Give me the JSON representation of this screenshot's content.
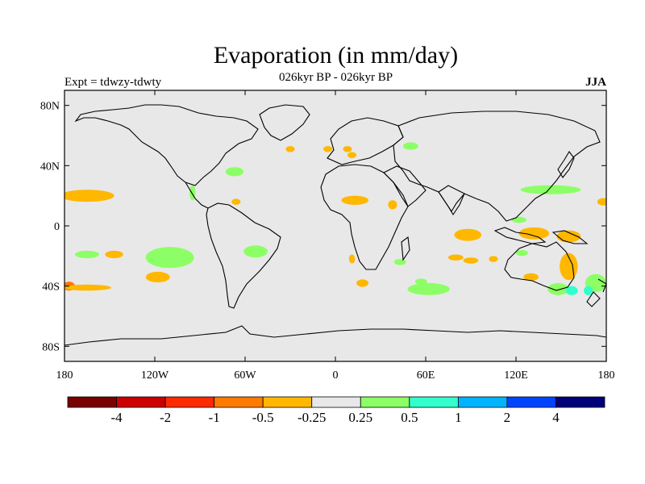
{
  "header": {
    "title": "Evaporation (in mm/day)",
    "subtitle": "026kyr BP - 026kyr BP",
    "left": "Expt = tdwzy-tdwty",
    "right": "JJA"
  },
  "map": {
    "background": "#e8e8e8",
    "lat_ticks": [
      {
        "lat": 80,
        "label": "80N"
      },
      {
        "lat": 40,
        "label": "40N"
      },
      {
        "lat": 0,
        "label": "0"
      },
      {
        "lat": -40,
        "label": "40S"
      },
      {
        "lat": -80,
        "label": "80S"
      }
    ],
    "lon_ticks": [
      {
        "lon": -180,
        "label": "180"
      },
      {
        "lon": -120,
        "label": "120W"
      },
      {
        "lon": -60,
        "label": "60W"
      },
      {
        "lon": 0,
        "label": "0"
      },
      {
        "lon": 60,
        "label": "60E"
      },
      {
        "lon": 120,
        "label": "120E"
      },
      {
        "lon": 180,
        "label": "180"
      }
    ],
    "anomalies": [
      {
        "lon": -165,
        "lat": 20,
        "rlon": 18,
        "rlat": 4,
        "color": "#ffb700"
      },
      {
        "lon": -177,
        "lat": -40,
        "rlon": 4,
        "rlat": 3,
        "color": "#ff7a00"
      },
      {
        "lon": -165,
        "lat": -41,
        "rlon": 16,
        "rlat": 2,
        "color": "#ffb700"
      },
      {
        "lon": -165,
        "lat": -19,
        "rlon": 8,
        "rlat": 2.5,
        "color": "#8cff66"
      },
      {
        "lon": -147,
        "lat": -19,
        "rlon": 6,
        "rlat": 2.5,
        "color": "#ffb700"
      },
      {
        "lon": -110,
        "lat": -21,
        "rlon": 16,
        "rlat": 7,
        "color": "#8cff66"
      },
      {
        "lon": -118,
        "lat": -34,
        "rlon": 8,
        "rlat": 3.5,
        "color": "#ffb700"
      },
      {
        "lon": -66,
        "lat": 16,
        "rlon": 3,
        "rlat": 2,
        "color": "#ffb700"
      },
      {
        "lon": -95,
        "lat": 22,
        "rlon": 2,
        "rlat": 5,
        "color": "#8cff66"
      },
      {
        "lon": -67,
        "lat": 36,
        "rlon": 6,
        "rlat": 3,
        "color": "#8cff66"
      },
      {
        "lon": -53,
        "lat": -17,
        "rlon": 8,
        "rlat": 4,
        "color": "#8cff66"
      },
      {
        "lon": -30,
        "lat": 51,
        "rlon": 3,
        "rlat": 2,
        "color": "#ffb700"
      },
      {
        "lon": -5,
        "lat": 51,
        "rlon": 3,
        "rlat": 2,
        "color": "#ffb700"
      },
      {
        "lon": 8,
        "lat": 51,
        "rlon": 3,
        "rlat": 2,
        "color": "#ffb700"
      },
      {
        "lon": 11,
        "lat": 47,
        "rlon": 3,
        "rlat": 2,
        "color": "#ffb700"
      },
      {
        "lon": 50,
        "lat": 53,
        "rlon": 5,
        "rlat": 2.5,
        "color": "#8cff66"
      },
      {
        "lon": 13,
        "lat": 17,
        "rlon": 9,
        "rlat": 3,
        "color": "#ffb700"
      },
      {
        "lon": 38,
        "lat": 14,
        "rlon": 3,
        "rlat": 3,
        "color": "#ffb700"
      },
      {
        "lon": 11,
        "lat": -22,
        "rlon": 2,
        "rlat": 3,
        "color": "#ffb700"
      },
      {
        "lon": 18,
        "lat": -38,
        "rlon": 4,
        "rlat": 2.5,
        "color": "#ffb700"
      },
      {
        "lon": 43,
        "lat": -24,
        "rlon": 4,
        "rlat": 2,
        "color": "#8cff66"
      },
      {
        "lon": 62,
        "lat": -42,
        "rlon": 14,
        "rlat": 4,
        "color": "#8cff66"
      },
      {
        "lon": 57,
        "lat": -37,
        "rlon": 4,
        "rlat": 2,
        "color": "#8cff66"
      },
      {
        "lon": 88,
        "lat": -6,
        "rlon": 9,
        "rlat": 4,
        "color": "#ffb700"
      },
      {
        "lon": 80,
        "lat": -21,
        "rlon": 5,
        "rlat": 2,
        "color": "#ffb700"
      },
      {
        "lon": 90,
        "lat": -23,
        "rlon": 5,
        "rlat": 2,
        "color": "#ffb700"
      },
      {
        "lon": 105,
        "lat": -22,
        "rlon": 3,
        "rlat": 2,
        "color": "#ffb700"
      },
      {
        "lon": 143,
        "lat": 24,
        "rlon": 20,
        "rlat": 3,
        "color": "#8cff66"
      },
      {
        "lon": 178,
        "lat": 16,
        "rlon": 4,
        "rlat": 2.5,
        "color": "#ffb700"
      },
      {
        "lon": 122,
        "lat": 4,
        "rlon": 5,
        "rlat": 2,
        "color": "#8cff66"
      },
      {
        "lon": 132,
        "lat": -5,
        "rlon": 10,
        "rlat": 4,
        "color": "#ffb700"
      },
      {
        "lon": 155,
        "lat": -7,
        "rlon": 8,
        "rlat": 4,
        "color": "#ffb700"
      },
      {
        "lon": 124,
        "lat": -18,
        "rlon": 4,
        "rlat": 2,
        "color": "#8cff66"
      },
      {
        "lon": 155,
        "lat": -27,
        "rlon": 6,
        "rlat": 9,
        "color": "#ffb700"
      },
      {
        "lon": 130,
        "lat": -34,
        "rlon": 5,
        "rlat": 2.5,
        "color": "#ffb700"
      },
      {
        "lon": 148,
        "lat": -42,
        "rlon": 7,
        "rlat": 4,
        "color": "#8cff66"
      },
      {
        "lon": 157,
        "lat": -43,
        "rlon": 4,
        "rlat": 3,
        "color": "#33ffcc"
      },
      {
        "lon": 173,
        "lat": -38,
        "rlon": 7,
        "rlat": 6,
        "color": "#8cff66"
      },
      {
        "lon": 168,
        "lat": -43,
        "rlon": 3,
        "rlat": 3,
        "color": "#33ffcc"
      }
    ]
  },
  "colorbar": {
    "colors": [
      "#7a0000",
      "#cc0000",
      "#ff2a00",
      "#ff7a00",
      "#ffb700",
      "#e8e8e8",
      "#8cff66",
      "#33ffcc",
      "#00b4ff",
      "#0044ff",
      "#00007a"
    ],
    "labels": [
      "-4",
      "-2",
      "-1",
      "-0.5",
      "-0.25",
      "0.25",
      "0.5",
      "1",
      "2",
      "4"
    ]
  }
}
